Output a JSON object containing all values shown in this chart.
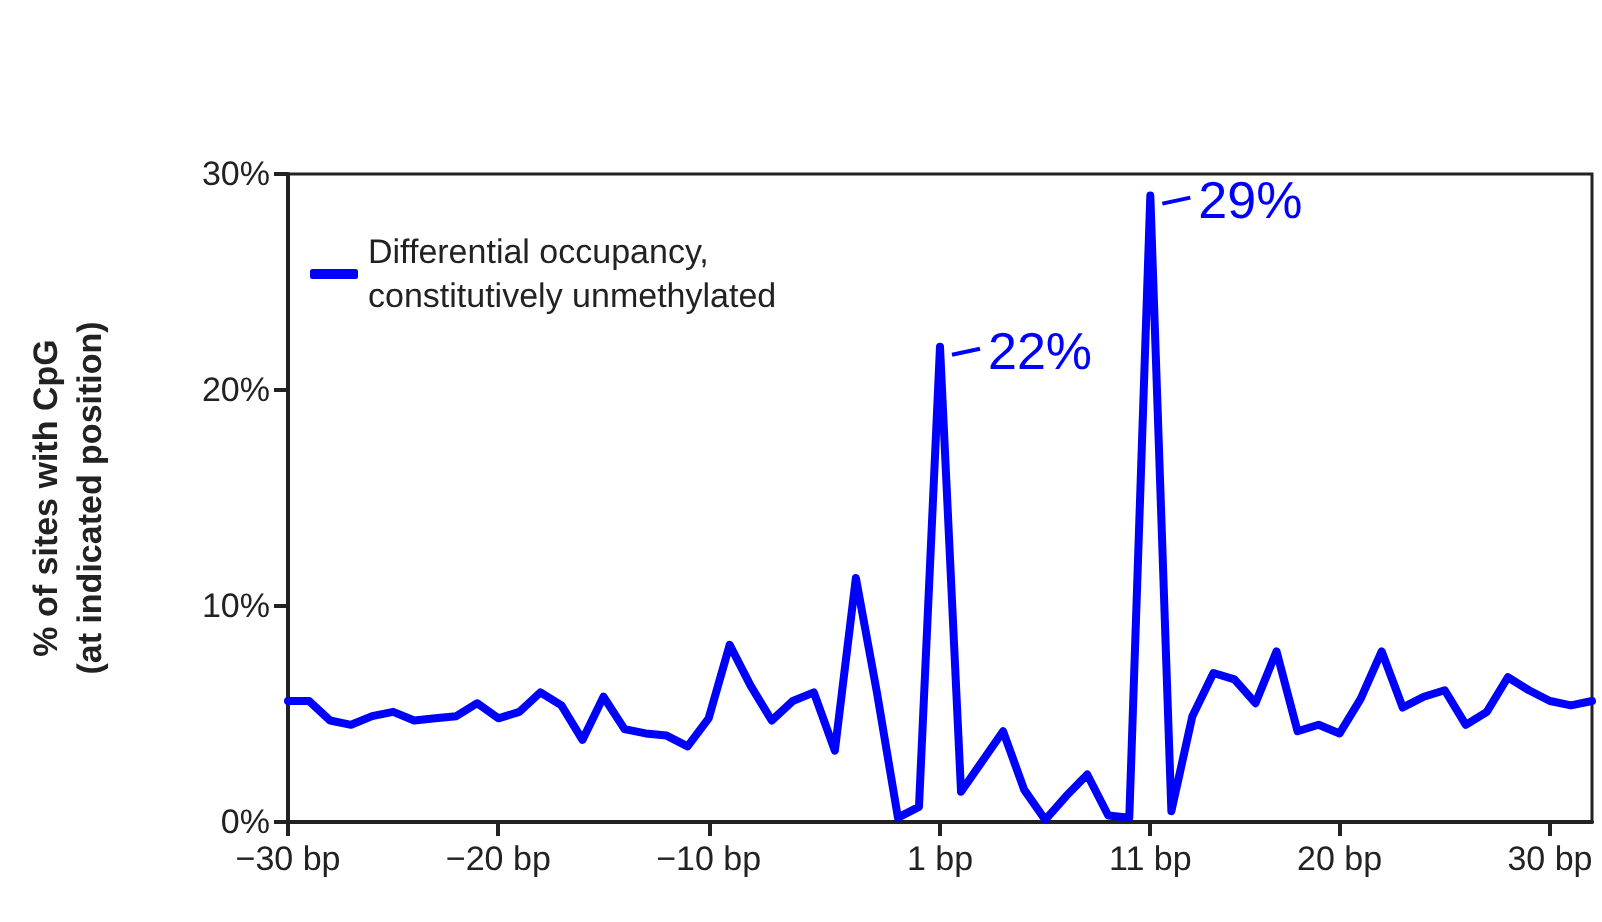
{
  "chart_data": {
    "type": "line",
    "ylabel": "% of sites with CpG\n(at indicated position)",
    "x": [
      -30,
      -29,
      -28,
      -27,
      -26,
      -25,
      -24,
      -23,
      -22,
      -21,
      -20,
      -19,
      -18,
      -17,
      -16,
      -15,
      -14,
      -13,
      -12,
      -11,
      -10,
      -9,
      -8,
      -7,
      -6,
      -5,
      -4,
      -3,
      -2,
      -1,
      0,
      1,
      2,
      3,
      4,
      5,
      6,
      7,
      8,
      9,
      10,
      11,
      12,
      13,
      14,
      15,
      16,
      17,
      18,
      19,
      20,
      21,
      22,
      23,
      24,
      25,
      26,
      27,
      28,
      29,
      30,
      31,
      32
    ],
    "series": [
      {
        "name": "Differential occupancy, constitutively unmethylated",
        "color": "#0000ff",
        "values": [
          5.6,
          5.6,
          4.7,
          4.5,
          4.9,
          5.1,
          4.7,
          4.8,
          4.9,
          5.5,
          4.8,
          5.1,
          6.0,
          5.4,
          3.8,
          5.8,
          4.3,
          4.1,
          4.0,
          3.5,
          4.8,
          8.2,
          6.3,
          4.7,
          5.6,
          6.0,
          3.3,
          11.3,
          6.0,
          0.2,
          0.7,
          22,
          1.4,
          2.8,
          4.2,
          1.5,
          0.1,
          1.2,
          2.2,
          0.3,
          0.2,
          29,
          0.5,
          4.9,
          6.9,
          6.6,
          5.5,
          7.9,
          4.2,
          4.5,
          4.1,
          5.7,
          7.9,
          5.3,
          5.8,
          6.1,
          4.5,
          5.1,
          6.7,
          6.1,
          5.6,
          5.4,
          5.6
        ]
      }
    ],
    "annotations": [
      {
        "text": "22%",
        "x": 1,
        "y": 22
      },
      {
        "text": "29%",
        "x": 11,
        "y": 29
      }
    ],
    "xlim": [
      -30,
      32
    ],
    "xticks": [
      {
        "value": -30,
        "label": "−30 bp"
      },
      {
        "value": -20,
        "label": "−20 bp"
      },
      {
        "value": -10,
        "label": "−10 bp"
      },
      {
        "value": 1,
        "label": "1 bp"
      },
      {
        "value": 11,
        "label": "11 bp"
      },
      {
        "value": 20,
        "label": "20 bp"
      },
      {
        "value": 30,
        "label": "30 bp"
      }
    ],
    "ylim": [
      0,
      30
    ],
    "yticks": [
      {
        "value": 0,
        "label": "0%"
      },
      {
        "value": 10,
        "label": "10%"
      },
      {
        "value": 20,
        "label": "20%"
      },
      {
        "value": 30,
        "label": "30%"
      }
    ],
    "legend": "top left",
    "grid": false,
    "marker": "none",
    "line_style": "solid"
  }
}
